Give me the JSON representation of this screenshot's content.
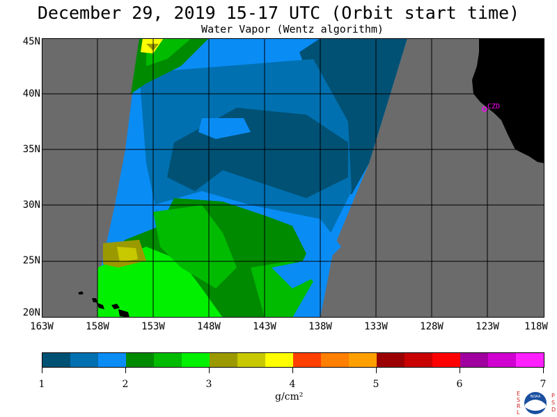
{
  "title": "December 29, 2019  15-17 UTC  (Orbit start time)",
  "subtitle": "Water Vapor (Wentz algorithm)",
  "map": {
    "lat_labels": [
      "45N",
      "40N",
      "35N",
      "30N",
      "25N",
      "20N"
    ],
    "lon_labels": [
      "163W",
      "158W",
      "153W",
      "148W",
      "143W",
      "138W",
      "133W",
      "128W",
      "123W",
      "118W"
    ],
    "station_label": "CZD",
    "colors": {
      "no_data": "#6b6b6b",
      "land": "#000000",
      "station": "#ff00ff"
    }
  },
  "colorbar": {
    "colors": [
      "#005174",
      "#0070b0",
      "#0a8cf5",
      "#008a00",
      "#00bb00",
      "#00f000",
      "#9a9a00",
      "#c8c800",
      "#ffff00",
      "#ff4000",
      "#ff7f00",
      "#ffa000",
      "#9a0000",
      "#c80000",
      "#ff0000",
      "#a000a0",
      "#d000d0",
      "#ff20ff"
    ],
    "ticks": [
      "1",
      "2",
      "3",
      "4",
      "5",
      "6",
      "7"
    ],
    "unit": "g/cm²"
  },
  "logo": {
    "left_letters": [
      "E",
      "S",
      "R",
      "L"
    ],
    "right_letters": [
      "P",
      "S",
      "D"
    ],
    "text": "NOAA"
  }
}
